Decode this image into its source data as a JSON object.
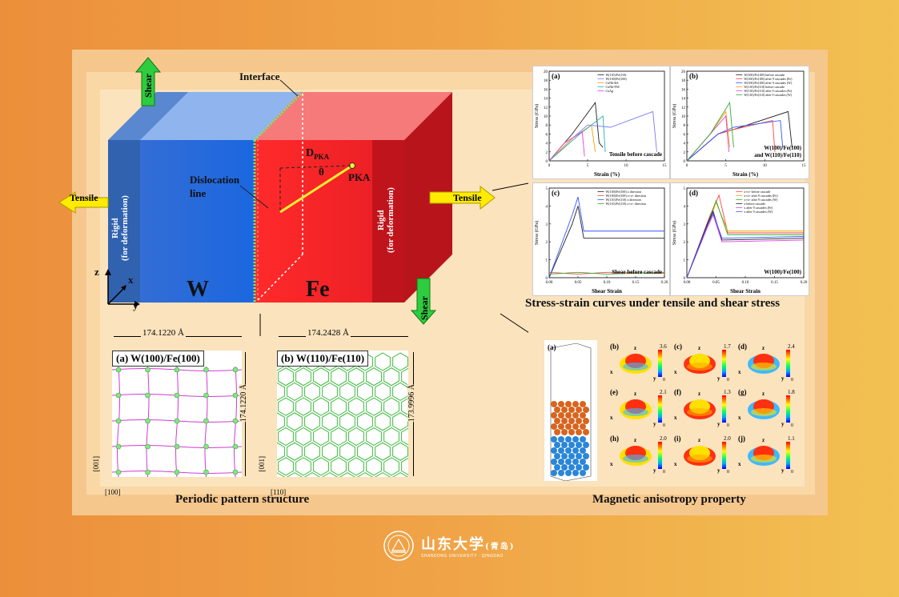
{
  "schematic": {
    "interface": "Interface",
    "shear_top": "Shear",
    "shear_bottom": "Shear",
    "tensile_left": "Tensile",
    "tensile_right": "Tensile",
    "rigid_left": "Rigid\n(for deformation)",
    "rigid_right": "Rigid\n(for deformation)",
    "d_pka": "D",
    "d_pka_sub": "PKA",
    "theta": "θ",
    "pka": "PKA",
    "dislocation": "Dislocation\nline",
    "w": "W",
    "fe": "Fe",
    "axis_z": "z",
    "axis_x": "x",
    "axis_y": "y"
  },
  "stress_strain": {
    "caption": "Stress-strain curves under tensile and shear stress",
    "a": {
      "letter": "(a)",
      "label": "Tensile before cascade",
      "ylabel": "Stress (GPa)",
      "xlabel": "Strain (%)",
      "legend": [
        "W(110)/Fe(110)",
        "W(100)/Fe(100)",
        "CuNb-KS",
        "CuNb-NW",
        "CuAg"
      ],
      "yticks": [
        "0",
        "2",
        "4",
        "6",
        "8",
        "10",
        "12",
        "14",
        "16",
        "18",
        "20"
      ],
      "xticks": [
        "0",
        "5",
        "10",
        "15"
      ]
    },
    "b": {
      "letter": "(b)",
      "label1": "W(100)/Fe(100)",
      "label2": "and W(110)/Fe(110)",
      "ylabel": "Stress (GPa)",
      "xlabel": "Strain (%)",
      "legend": [
        "W(100)/Fe(100) before cascade",
        "W(100)/Fe(100) after 9 cascades (Fe)",
        "W(100)/Fe(100) after 9 cascades (W)",
        "W(110)/Fe(110) before cascade",
        "W(110)/Fe(110) after 9 cascades (Fe)",
        "W(110)/Fe(110) after 9 cascades (W)"
      ],
      "yticks": [
        "0",
        "2",
        "4",
        "6",
        "8",
        "10",
        "12",
        "14",
        "16",
        "18",
        "20"
      ],
      "xticks": [
        "0",
        "5",
        "10",
        "15"
      ]
    },
    "c": {
      "letter": "(c)",
      "label": "Shear before cascade",
      "ylabel": "Stress (GPa)",
      "xlabel": "Shear Strain",
      "legend": [
        "W(100)/Fe(100) x direction",
        "W(100)/Fe(100) x+z+ direction",
        "W(110)/Fe(110) x direction",
        "W(110)/Fe(110) x+z+ direction"
      ],
      "yticks": [
        "0",
        "1",
        "2",
        "3",
        "4",
        "5"
      ],
      "xticks": [
        "0.00",
        "0.05",
        "0.10",
        "0.15",
        "0.20"
      ]
    },
    "d": {
      "letter": "(d)",
      "label": "W(100)/Fe(100)",
      "ylabel": "Stress (GPa)",
      "xlabel": "Shear Strain",
      "legend": [
        "x+z+ before cascade",
        "x+z+ after 9 cascades (Fe)",
        "x+z+ after 9 cascades (W)",
        "x before cascade",
        "x after 9 cascades (Fe)",
        "x after 9 cascades (W)"
      ],
      "yticks": [
        "0",
        "1",
        "2",
        "3",
        "4",
        "5"
      ],
      "xticks": [
        "0.00",
        "0.05",
        "0.10",
        "0.15",
        "0.20"
      ]
    }
  },
  "periodic": {
    "caption": "Periodic pattern structure",
    "a": {
      "title": "(a) W(100)/Fe(100)",
      "width": "174.1220 Å",
      "height": "174.1220 Å",
      "ax1": "[001]",
      "ax2": "[100]"
    },
    "b": {
      "title": "(b) W(110)/Fe(110)",
      "width": "174.2428 Å",
      "height": "173.9996 Å",
      "ax1": "[001]",
      "ax2": "[110]"
    }
  },
  "magnetic": {
    "caption": "Magnetic anisotropy property",
    "cells": [
      {
        "letter": "(a)"
      },
      {
        "letter": "(b)",
        "max": "3.6",
        "min": "0"
      },
      {
        "letter": "(c)",
        "max": "1.7",
        "min": "0"
      },
      {
        "letter": "(d)",
        "max": "2.4",
        "min": "0"
      },
      {
        "letter": "(e)",
        "max": "2.1",
        "min": "0"
      },
      {
        "letter": "(f)",
        "max": "1.3",
        "min": "0"
      },
      {
        "letter": "(g)",
        "max": "1.8",
        "min": "0"
      },
      {
        "letter": "(h)",
        "max": "2.0",
        "min": "0"
      },
      {
        "letter": "(i)",
        "max": "2.0",
        "min": "0"
      },
      {
        "letter": "(j)",
        "max": "1.1",
        "min": "0"
      }
    ],
    "axis_x": "x",
    "axis_y": "y",
    "axis_z": "z"
  },
  "logo": {
    "name": "山东大学",
    "campus": "(青岛)",
    "english": "SHANDONG UNIVERSITY · QINGDAO"
  },
  "colors": {
    "w_blue": "#2f6fd6",
    "fe_red": "#e8242a",
    "arrow_green": "#2ecc40",
    "arrow_yellow": "#ffeb00"
  }
}
